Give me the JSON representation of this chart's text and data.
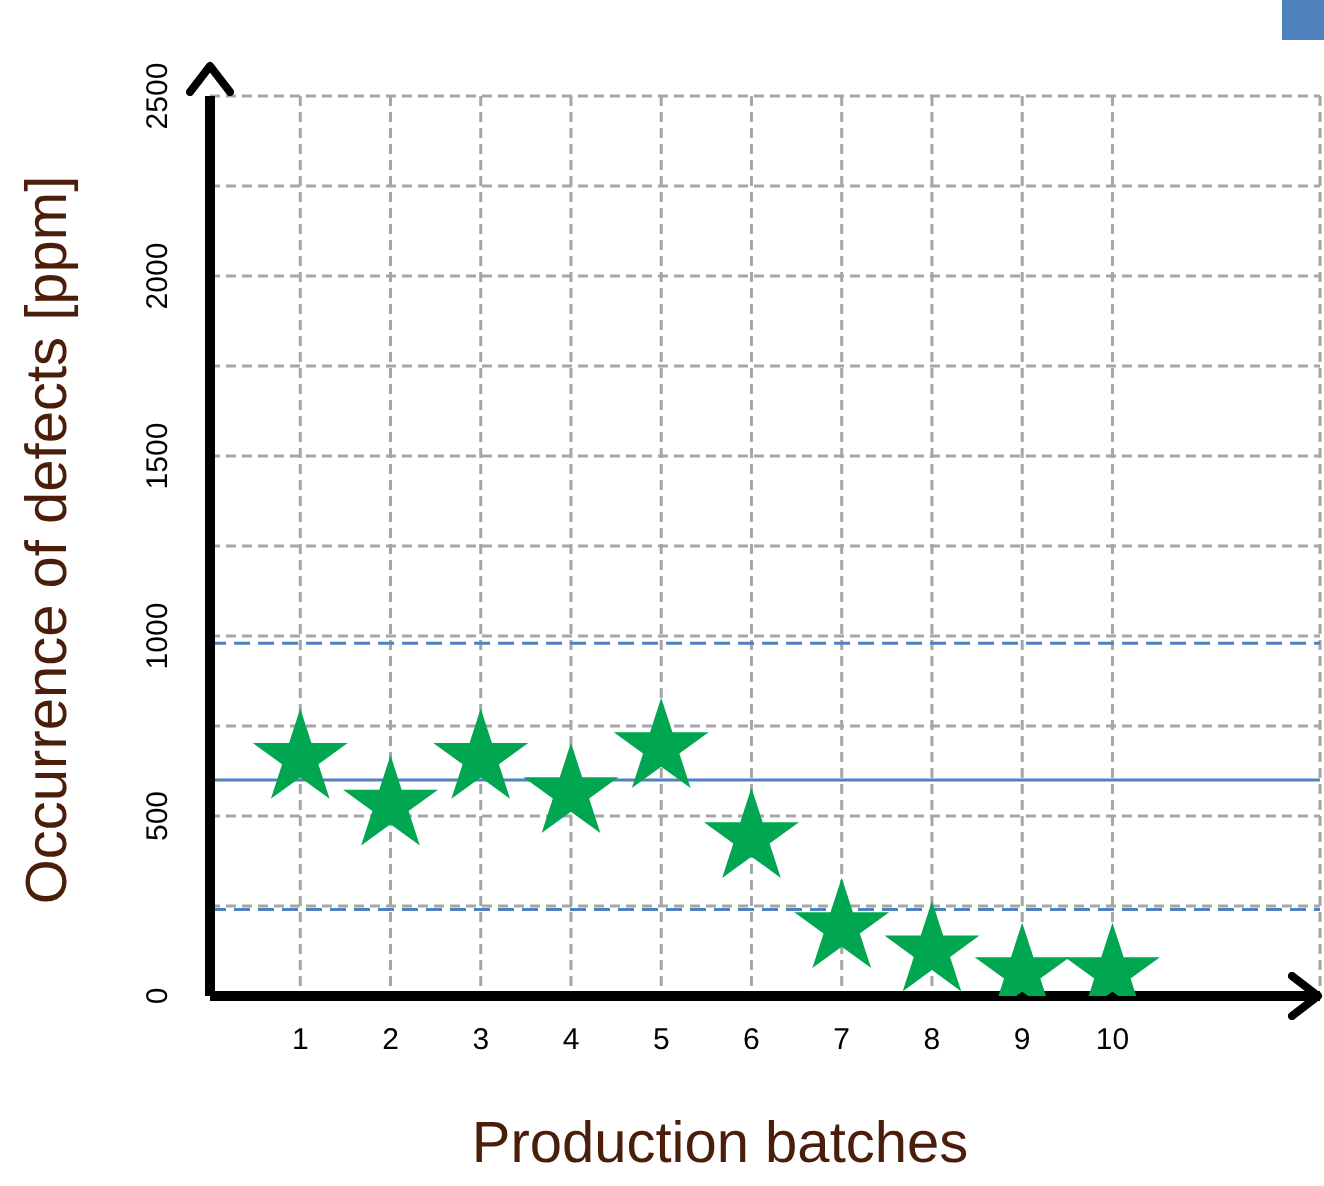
{
  "chart_data": {
    "type": "scatter",
    "xlabel": "Production batches",
    "ylabel": "Occurrence of defects [ppm]",
    "x": [
      1,
      2,
      3,
      4,
      5,
      6,
      7,
      8,
      9,
      10
    ],
    "series": [
      {
        "color": "#00a650",
        "values": [
          660,
          530,
          660,
          565,
          690,
          440,
          190,
          125,
          65,
          65
        ]
      }
    ],
    "marker": "star",
    "xlim": [
      0,
      12.3
    ],
    "xticks": [
      1,
      2,
      3,
      4,
      5,
      6,
      7,
      8,
      9,
      10
    ],
    "ylim": [
      0,
      2500
    ],
    "yticks": [
      0,
      {
        "value": 250,
        "label": null
      },
      500,
      {
        "value": 750,
        "label": null
      },
      1000,
      {
        "value": 1250,
        "label": null
      },
      1500,
      {
        "value": 1750,
        "label": null
      },
      2000,
      {
        "value": 2250,
        "label": null
      },
      2500
    ],
    "grid": true,
    "ref_lines": [
      {
        "axis": "y",
        "value": 600,
        "color": "#4f81bd",
        "line_style": "solid"
      },
      {
        "axis": "y",
        "value": 980,
        "color": "#4f81bd",
        "line_style": "dashed"
      },
      {
        "axis": "y",
        "value": 240,
        "color": "#4f81bd",
        "line_style": "dashed"
      }
    ]
  }
}
